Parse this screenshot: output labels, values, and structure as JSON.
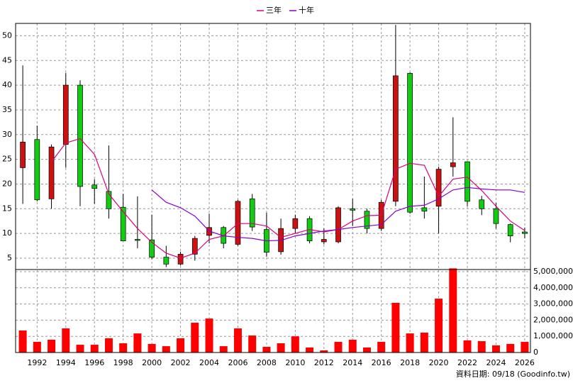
{
  "chart_data": [
    {
      "type": "candlestick",
      "x": [
        1991,
        1992,
        1993,
        1994,
        1995,
        1996,
        1997,
        1998,
        1999,
        2000,
        2001,
        2002,
        2003,
        2004,
        2005,
        2006,
        2007,
        2008,
        2009,
        2010,
        2011,
        2012,
        2013,
        2014,
        2015,
        2016,
        2017,
        2018,
        2019,
        2020,
        2021,
        2022,
        2023,
        2024,
        2025,
        2026
      ],
      "open": [
        23.3,
        29,
        17,
        28,
        40,
        19.8,
        18.5,
        15.3,
        8.8,
        8.7,
        5.2,
        3.8,
        5.8,
        9.6,
        11.2,
        7.8,
        17,
        10.8,
        6.3,
        11,
        13,
        8.3,
        8.3,
        15,
        14.5,
        11,
        16.5,
        42.4,
        15.2,
        15.5,
        23.5,
        24.5,
        16.8,
        15,
        11.8,
        10.3
      ],
      "high": [
        44,
        31.8,
        28,
        42.5,
        41,
        21,
        27.8,
        18,
        17.5,
        13.8,
        7.5,
        6.3,
        9.5,
        14,
        11.5,
        16.8,
        18,
        14.2,
        13,
        13.8,
        13.5,
        11,
        15.5,
        17,
        15,
        16.8,
        52.2,
        42.6,
        21.5,
        23.5,
        33.5,
        24.5,
        17.6,
        16.2,
        12,
        11.2
      ],
      "low": [
        16,
        16.5,
        15,
        23.3,
        15.5,
        16,
        13,
        8.5,
        7,
        4.8,
        3.2,
        3.5,
        4.5,
        8,
        7,
        7.5,
        10.5,
        5.3,
        5.7,
        10,
        8,
        7.8,
        8,
        11.5,
        10,
        10.5,
        15.5,
        14,
        13,
        10,
        21.5,
        15.5,
        13.7,
        11,
        8.2,
        9
      ],
      "close": [
        28.5,
        16.8,
        27.5,
        40,
        19.5,
        19.1,
        15,
        8.5,
        8.6,
        5.2,
        3.8,
        5.8,
        9,
        11.2,
        8,
        16.5,
        11.3,
        6.2,
        11,
        13,
        8.5,
        8.8,
        15.2,
        14.7,
        11,
        16.3,
        41.9,
        14.3,
        14.5,
        23,
        24.3,
        16.5,
        15,
        12,
        9.5,
        10
      ],
      "up_color": "#cc1111",
      "down_color": "#11cc11",
      "series": [
        {
          "name": "三年",
          "color": "#dd0077",
          "values": [
            null,
            null,
            24.5,
            28.3,
            29.2,
            26,
            18,
            14.4,
            11,
            8.2,
            6,
            5,
            6,
            8.8,
            9.5,
            12,
            12,
            11.5,
            9.2,
            10,
            10.8,
            10.3,
            10.8,
            12.5,
            13.6,
            13.7,
            23,
            24.2,
            23.8,
            17.5,
            21,
            21.4,
            18.7,
            15.5,
            12.5,
            10.6
          ]
        },
        {
          "name": "十年",
          "color": "#8800cc",
          "values": [
            null,
            null,
            null,
            null,
            null,
            null,
            null,
            null,
            null,
            18.8,
            16.3,
            15.2,
            13.5,
            10.5,
            9.5,
            9.2,
            9,
            8.5,
            8.6,
            9.5,
            10,
            10.5,
            10.8,
            11.2,
            11.5,
            11.8,
            14.5,
            15.5,
            15.7,
            17,
            18.8,
            19.3,
            19,
            18.8,
            18.8,
            18.3
          ]
        }
      ],
      "xlim": [
        1990.5,
        2026.4
      ],
      "ylim": [
        2.7,
        52.5
      ],
      "yticks": [
        5,
        10,
        15,
        20,
        25,
        30,
        35,
        40,
        45,
        50
      ],
      "grid": true
    },
    {
      "type": "bar",
      "x": [
        1991,
        1992,
        1993,
        1994,
        1995,
        1996,
        1997,
        1998,
        1999,
        2000,
        2001,
        2002,
        2003,
        2004,
        2005,
        2006,
        2007,
        2008,
        2009,
        2010,
        2011,
        2012,
        2013,
        2014,
        2015,
        2016,
        2017,
        2018,
        2019,
        2020,
        2021,
        2022,
        2023,
        2024,
        2025,
        2026
      ],
      "values": [
        1360000,
        660000,
        790000,
        1490000,
        480000,
        480000,
        880000,
        570000,
        1180000,
        530000,
        390000,
        880000,
        1840000,
        2100000,
        390000,
        1490000,
        1050000,
        350000,
        570000,
        1000000,
        310000,
        130000,
        660000,
        790000,
        310000,
        660000,
        3070000,
        1180000,
        1230000,
        3330000,
        5200000,
        750000,
        700000,
        440000,
        530000,
        660000
      ],
      "color": "#ff0000",
      "xlim": [
        1990.5,
        2026.4
      ],
      "xticks": [
        1992,
        1994,
        1996,
        1998,
        2000,
        2002,
        2004,
        2006,
        2008,
        2010,
        2012,
        2014,
        2016,
        2018,
        2020,
        2022,
        2024,
        2026
      ],
      "ylim": [
        0,
        5130000
      ],
      "yticks": [
        0,
        {
          "value": 1000000,
          "label": "1,000,000"
        },
        {
          "value": 2000000,
          "label": "2,000,000"
        },
        {
          "value": 3000000,
          "label": "3,000,000"
        },
        {
          "value": 4000000,
          "label": "4,000,000"
        },
        {
          "value": 5000000,
          "label": "5,000,000"
        }
      ],
      "grid": true,
      "source": "資料日期: 09/18 (Goodinfo.tw)"
    }
  ]
}
